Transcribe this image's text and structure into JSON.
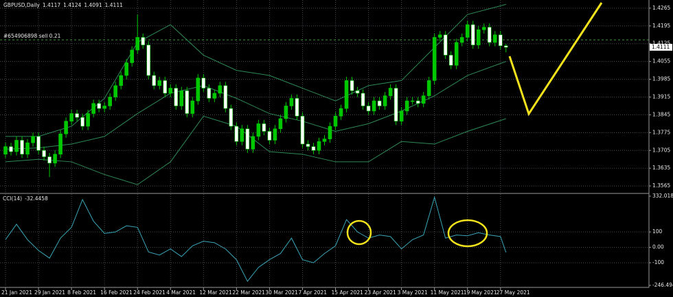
{
  "chart_data": {
    "type": "candlestick",
    "title": "GBPUSD,Daily",
    "open": [
      1.369,
      1.372,
      1.37,
      1.3745,
      1.369,
      1.3735,
      1.376,
      1.3705,
      1.368,
      1.3655,
      1.369,
      1.377,
      1.382,
      1.385,
      1.3835,
      1.38,
      1.385,
      1.389,
      1.387,
      1.388,
      1.3915,
      1.396,
      1.4,
      1.405,
      1.41,
      1.415,
      1.412,
      1.4,
      1.396,
      1.398,
      1.393,
      1.395,
      1.388,
      1.394,
      1.385,
      1.39,
      1.399,
      1.395,
      1.391,
      1.393,
      1.396,
      1.387,
      1.38,
      1.374,
      1.379,
      1.371,
      1.376,
      1.381,
      1.378,
      1.3745,
      1.379,
      1.383,
      1.388,
      1.391,
      1.384,
      1.373,
      1.372,
      1.3705,
      1.374,
      1.375,
      1.38,
      1.384,
      1.387,
      1.398,
      1.394,
      1.393,
      1.388,
      1.386,
      1.39,
      1.388,
      1.392,
      1.395,
      1.382,
      1.386,
      1.39,
      1.39,
      1.389,
      1.392,
      1.398,
      1.415,
      1.416,
      1.408,
      1.404,
      1.413,
      1.415,
      1.42,
      1.412,
      1.418,
      1.419,
      1.413,
      1.416,
      1.4117
    ],
    "high": [
      1.3735,
      1.3735,
      1.376,
      1.376,
      1.375,
      1.3775,
      1.3775,
      1.372,
      1.3695,
      1.3705,
      1.3785,
      1.3835,
      1.3865,
      1.3865,
      1.385,
      1.3865,
      1.3905,
      1.3905,
      1.3895,
      1.393,
      1.3975,
      1.4015,
      1.4065,
      1.4115,
      1.424,
      1.4165,
      1.4135,
      1.4015,
      1.3995,
      1.3995,
      1.3965,
      1.3965,
      1.3955,
      1.3955,
      1.3915,
      1.4005,
      1.4005,
      1.3965,
      1.3945,
      1.3975,
      1.3975,
      1.3885,
      1.3815,
      1.3805,
      1.3805,
      1.3775,
      1.3825,
      1.3825,
      1.3795,
      1.3805,
      1.3845,
      1.3895,
      1.3925,
      1.3925,
      1.3855,
      1.3745,
      1.3735,
      1.3755,
      1.3765,
      1.3815,
      1.3855,
      1.3885,
      1.3995,
      1.3995,
      1.3955,
      1.3945,
      1.3895,
      1.3915,
      1.3915,
      1.3935,
      1.3965,
      1.3965,
      1.3875,
      1.3915,
      1.3915,
      1.3915,
      1.3935,
      1.3995,
      1.4165,
      1.4175,
      1.4175,
      1.4095,
      1.4145,
      1.4165,
      1.4215,
      1.4215,
      1.4195,
      1.4205,
      1.4205,
      1.4175,
      1.4175,
      1.4124
    ],
    "low": [
      1.3675,
      1.3685,
      1.3685,
      1.3675,
      1.3675,
      1.372,
      1.369,
      1.3665,
      1.36,
      1.364,
      1.3675,
      1.3755,
      1.3805,
      1.382,
      1.3785,
      1.3785,
      1.3835,
      1.3855,
      1.3855,
      1.3865,
      1.39,
      1.3945,
      1.3985,
      1.4035,
      1.4085,
      1.4105,
      1.3985,
      1.3945,
      1.3945,
      1.3915,
      1.3915,
      1.3865,
      1.3865,
      1.3835,
      1.3835,
      1.3885,
      1.3935,
      1.3895,
      1.3895,
      1.3915,
      1.3855,
      1.3785,
      1.3725,
      1.3725,
      1.3695,
      1.3695,
      1.3745,
      1.3765,
      1.373,
      1.373,
      1.3775,
      1.3815,
      1.3865,
      1.3825,
      1.3715,
      1.3705,
      1.369,
      1.369,
      1.3725,
      1.3735,
      1.3785,
      1.3825,
      1.3855,
      1.3925,
      1.3915,
      1.3865,
      1.3845,
      1.3845,
      1.3865,
      1.3865,
      1.3905,
      1.3805,
      1.3805,
      1.3845,
      1.3885,
      1.3875,
      1.3875,
      1.3905,
      1.3965,
      1.4135,
      1.4065,
      1.4025,
      1.4025,
      1.4115,
      1.4135,
      1.4105,
      1.4105,
      1.4165,
      1.4115,
      1.4115,
      1.4102,
      1.4091
    ],
    "close": [
      1.372,
      1.37,
      1.3745,
      1.369,
      1.3735,
      1.376,
      1.3705,
      1.368,
      1.3655,
      1.369,
      1.377,
      1.382,
      1.385,
      1.3835,
      1.38,
      1.385,
      1.389,
      1.387,
      1.388,
      1.3915,
      1.396,
      1.4,
      1.405,
      1.41,
      1.415,
      1.412,
      1.4,
      1.396,
      1.398,
      1.393,
      1.395,
      1.388,
      1.394,
      1.385,
      1.39,
      1.399,
      1.395,
      1.391,
      1.393,
      1.396,
      1.387,
      1.38,
      1.374,
      1.379,
      1.371,
      1.376,
      1.381,
      1.378,
      1.3745,
      1.379,
      1.383,
      1.388,
      1.391,
      1.384,
      1.373,
      1.372,
      1.3705,
      1.374,
      1.375,
      1.38,
      1.384,
      1.387,
      1.398,
      1.394,
      1.393,
      1.388,
      1.386,
      1.39,
      1.388,
      1.392,
      1.395,
      1.382,
      1.386,
      1.39,
      1.39,
      1.389,
      1.392,
      1.398,
      1.415,
      1.416,
      1.408,
      1.404,
      1.413,
      1.415,
      1.42,
      1.412,
      1.418,
      1.419,
      1.413,
      1.416,
      1.4117,
      1.4111
    ],
    "up_color": "#00c800",
    "down_color": "#ffffff",
    "xlim": [
      -1,
      117
    ],
    "xticks": [
      {
        "value": 0,
        "label": "21 Jan 2021"
      },
      {
        "value": 6,
        "label": "29 Jan 2021"
      },
      {
        "value": 12,
        "label": "8 Feb 2021"
      },
      {
        "value": 18,
        "label": "16 Feb 2021"
      },
      {
        "value": 24,
        "label": "24 Feb 2021"
      },
      {
        "value": 30,
        "label": "4 Mar 2021"
      },
      {
        "value": 36,
        "label": "12 Mar 2021"
      },
      {
        "value": 42,
        "label": "22 Mar 2021"
      },
      {
        "value": 48,
        "label": "30 Mar 2021"
      },
      {
        "value": 54,
        "label": "7 Apr 2021"
      },
      {
        "value": 60,
        "label": "15 Apr 2021"
      },
      {
        "value": 66,
        "label": "23 Apr 2021"
      },
      {
        "value": 72,
        "label": "3 May 2021"
      },
      {
        "value": 78,
        "label": "11 May 2021"
      },
      {
        "value": 84,
        "label": "19 May 2021"
      },
      {
        "value": 90,
        "label": "27 May 2021"
      }
    ],
    "ylim": [
      1.3541,
      1.4289
    ],
    "yticks": [
      1.3565,
      1.3635,
      1.3705,
      1.3775,
      1.3845,
      1.3915,
      1.3985,
      1.4055,
      1.4125,
      1.4195,
      1.4265
    ],
    "grid": true,
    "bands": [
      {
        "color": "#2e8b57",
        "x": [
          0,
          6,
          12,
          18,
          24,
          30,
          36,
          42,
          48,
          54,
          60,
          66,
          72,
          78,
          84,
          91
        ],
        "values": [
          1.376,
          1.376,
          1.38,
          1.391,
          1.413,
          1.42,
          1.408,
          1.402,
          1.4,
          1.395,
          1.39,
          1.396,
          1.398,
          1.411,
          1.424,
          1.428
        ]
      },
      {
        "color": "#2e8b57",
        "x": [
          0,
          6,
          12,
          18,
          24,
          30,
          36,
          42,
          48,
          54,
          60,
          66,
          72,
          78,
          84,
          91
        ],
        "values": [
          1.371,
          1.3715,
          1.373,
          1.376,
          1.385,
          1.393,
          1.396,
          1.391,
          1.385,
          1.382,
          1.378,
          1.381,
          1.386,
          1.392,
          1.4,
          1.4055
        ]
      },
      {
        "color": "#2e8b57",
        "x": [
          0,
          6,
          12,
          18,
          24,
          30,
          36,
          42,
          48,
          54,
          60,
          66,
          72,
          78,
          84,
          91
        ],
        "values": [
          1.366,
          1.367,
          1.366,
          1.361,
          1.357,
          1.366,
          1.384,
          1.38,
          1.37,
          1.369,
          1.366,
          1.366,
          1.374,
          1.373,
          1.378,
          1.383
        ]
      }
    ],
    "order_line": {
      "label": "#654906898 sell 0.21",
      "value": 1.414,
      "color": "#3a9a3a"
    },
    "indicator": {
      "type": "line",
      "label": "CCI(14)",
      "color": "#3aa6b9",
      "x": [
        0,
        2,
        4,
        6,
        8,
        10,
        12,
        14,
        16,
        18,
        20,
        22,
        24,
        26,
        28,
        30,
        32,
        34,
        36,
        38,
        40,
        42,
        44,
        46,
        48,
        50,
        52,
        54,
        56,
        58,
        60,
        62,
        64,
        66,
        68,
        70,
        72,
        74,
        76,
        78,
        80,
        82,
        84,
        86,
        88,
        90,
        91
      ],
      "values": [
        50,
        150,
        50,
        -20,
        -70,
        60,
        130,
        310,
        170,
        90,
        100,
        140,
        130,
        -30,
        -50,
        -10,
        -60,
        10,
        40,
        30,
        -10,
        -80,
        -220,
        -130,
        -80,
        -40,
        60,
        -80,
        -100,
        -40,
        10,
        180,
        100,
        60,
        80,
        70,
        -10,
        50,
        80,
        325,
        60,
        80,
        75,
        95,
        80,
        70,
        -32.4458
      ],
      "ylim": [
        -246.4944,
        332.0181
      ],
      "yticks": [
        332.0181,
        100,
        {
          "value": 0,
          "label": "0.00"
        },
        -100,
        -246.4944
      ]
    }
  }
}
